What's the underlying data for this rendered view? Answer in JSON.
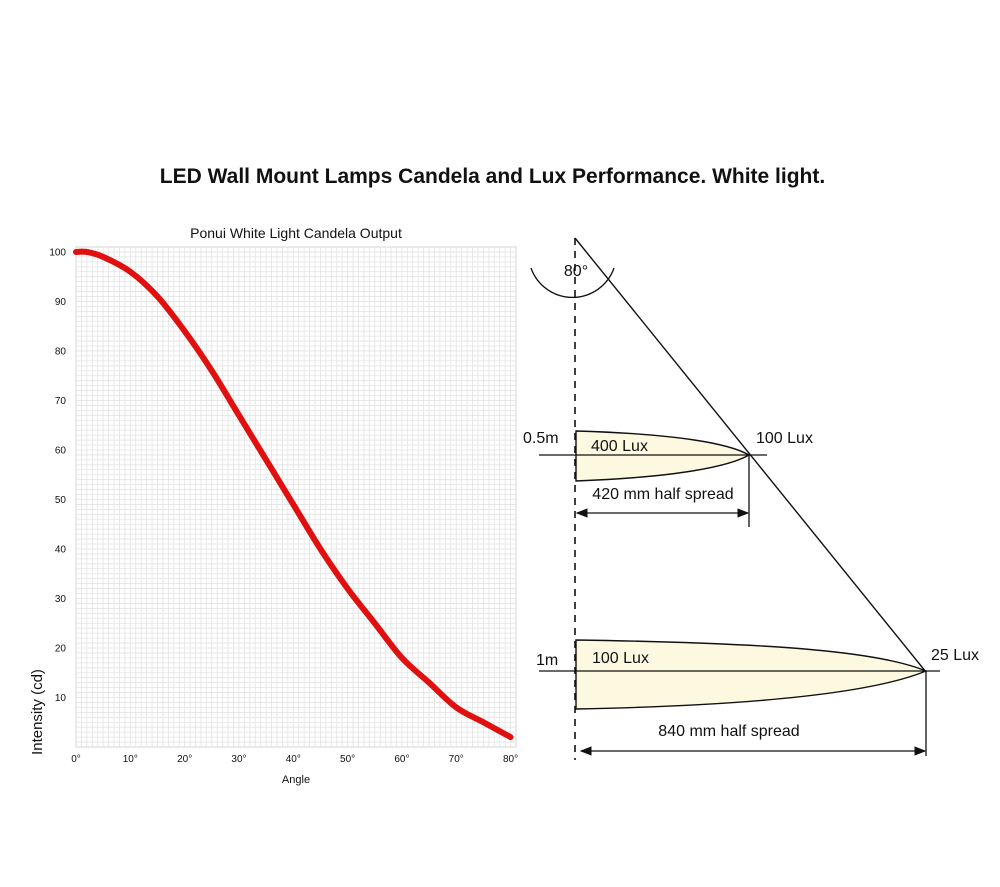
{
  "page_title": "LED Wall Mount Lamps Candela and Lux Performance. White light.",
  "chart_data": {
    "type": "line",
    "title": "Ponui White Light Candela Output",
    "xlabel": "Angle",
    "ylabel": "Intensity (cd)",
    "xlim": [
      0,
      81
    ],
    "ylim": [
      0,
      101
    ],
    "x_ticks": [
      "0°",
      "10°",
      "20°",
      "30°",
      "40°",
      "50°",
      "60°",
      "70°",
      "80°"
    ],
    "x_tick_values": [
      0,
      10,
      20,
      30,
      40,
      50,
      60,
      70,
      80
    ],
    "y_ticks": [
      "10",
      "20",
      "30",
      "40",
      "50",
      "60",
      "70",
      "80",
      "90",
      "100"
    ],
    "y_tick_values": [
      10,
      20,
      30,
      40,
      50,
      60,
      70,
      80,
      90,
      100
    ],
    "line_color": "#e0100f",
    "series": [
      {
        "name": "Candela output",
        "x": [
          0,
          2,
          5,
          10,
          15,
          20,
          25,
          30,
          35,
          40,
          45,
          50,
          55,
          60,
          65,
          70,
          75,
          80
        ],
        "values": [
          100,
          100,
          99,
          96,
          91,
          84,
          76,
          67,
          58,
          49,
          40,
          32,
          25,
          18,
          13,
          8,
          5,
          2
        ]
      }
    ]
  },
  "diagram": {
    "angle_label": "80°",
    "near": {
      "distance": "0.5m",
      "center_lux": "400 Lux",
      "edge_lux": "100 Lux",
      "spread": "420 mm half spread"
    },
    "far": {
      "distance": "1m",
      "center_lux": "100 Lux",
      "edge_lux": "25 Lux",
      "spread": "840 mm half spread"
    },
    "beam_fill": "#fdf9e1"
  }
}
